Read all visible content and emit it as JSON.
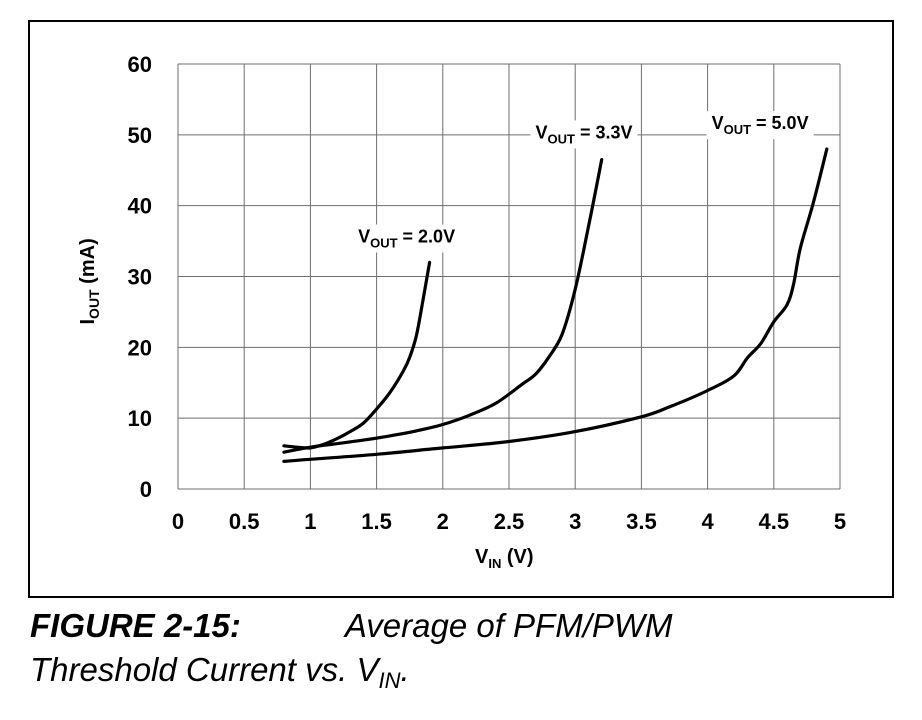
{
  "caption": {
    "figure_number": "FIGURE 2-15:",
    "title_line1": "Average of PFM/PWM",
    "title_line2_prefix": "Threshold Current vs. V",
    "title_line2_sub": "IN",
    "title_line2_suffix": "."
  },
  "chart_data": {
    "type": "line",
    "title": "",
    "xlabel": {
      "main": "V",
      "sub": "IN",
      "suffix": " (V)"
    },
    "ylabel": {
      "main": "I",
      "sub": "OUT",
      "suffix": " (mA)"
    },
    "xlim": [
      0,
      5
    ],
    "ylim": [
      0,
      60
    ],
    "xticks": [
      0,
      0.5,
      1,
      1.5,
      2,
      2.5,
      3,
      3.5,
      4,
      4.5,
      5
    ],
    "xtick_labels": [
      "0",
      "0.5",
      "1",
      "1.5",
      "2",
      "2.5",
      "3",
      "3.5",
      "4",
      "4.5",
      "5"
    ],
    "yticks": [
      0,
      10,
      20,
      30,
      40,
      50,
      60
    ],
    "ytick_labels": [
      "0",
      "10",
      "20",
      "30",
      "40",
      "50",
      "60"
    ],
    "grid": true,
    "series": [
      {
        "name": {
          "main": "V",
          "sub": "OUT",
          "suffix": " = 2.0V"
        },
        "color": "#000000",
        "x": [
          0.8,
          0.9,
          1.0,
          1.1,
          1.2,
          1.3,
          1.4,
          1.5,
          1.6,
          1.7,
          1.75,
          1.8,
          1.85,
          1.9
        ],
        "y": [
          6.1,
          5.9,
          5.8,
          6.3,
          7.1,
          8.1,
          9.3,
          11.3,
          13.6,
          16.6,
          18.6,
          21.6,
          26.6,
          32.0
        ]
      },
      {
        "name": {
          "main": "V",
          "sub": "OUT",
          "suffix": " = 3.3V"
        },
        "color": "#000000",
        "x": [
          0.8,
          1.0,
          1.2,
          1.4,
          1.6,
          1.8,
          2.0,
          2.2,
          2.4,
          2.6,
          2.7,
          2.8,
          2.9,
          3.0,
          3.1,
          3.2
        ],
        "y": [
          5.2,
          5.9,
          6.4,
          6.9,
          7.5,
          8.2,
          9.1,
          10.4,
          12.1,
          14.8,
          16.2,
          18.6,
          21.8,
          28.2,
          37.0,
          46.5
        ]
      },
      {
        "name": {
          "main": "V",
          "sub": "OUT",
          "suffix": " = 5.0V"
        },
        "color": "#000000",
        "x": [
          0.8,
          1.0,
          1.5,
          2.0,
          2.5,
          3.0,
          3.5,
          3.7,
          4.0,
          4.2,
          4.3,
          4.4,
          4.5,
          4.6,
          4.65,
          4.7,
          4.8,
          4.9
        ],
        "y": [
          3.9,
          4.2,
          4.9,
          5.8,
          6.7,
          8.1,
          10.2,
          11.5,
          13.9,
          16.0,
          18.5,
          20.5,
          23.6,
          26.0,
          29.0,
          34.0,
          40.5,
          48.0
        ]
      }
    ],
    "legend": "inline labels at curve ends"
  }
}
